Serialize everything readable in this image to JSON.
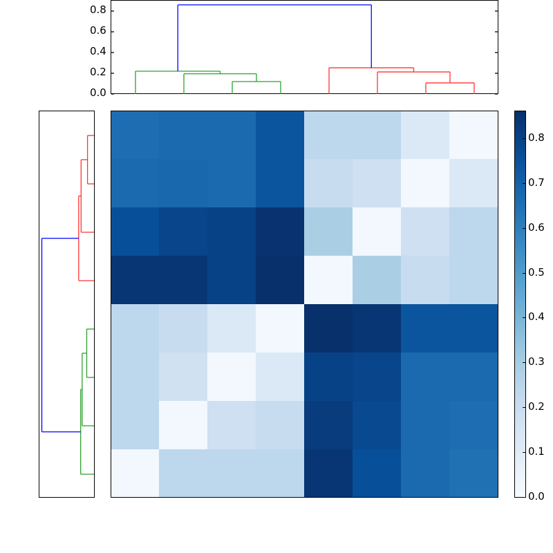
{
  "chart_data": [
    {
      "type": "dendrogram",
      "orientation": "top",
      "title": "",
      "ylabel": "",
      "ylim": [
        0,
        0.9
      ],
      "yticks": [
        "0.0",
        "0.2",
        "0.4",
        "0.6",
        "0.8"
      ],
      "leaf_order": [
        0,
        1,
        2,
        3,
        4,
        5,
        6,
        7
      ],
      "links": [
        {
          "left": 2,
          "right": 3,
          "height": 0.12,
          "color": "#2ca02c",
          "cluster": "green"
        },
        {
          "left": 1,
          "right": "2-3",
          "height": 0.195,
          "color": "#2ca02c",
          "cluster": "green"
        },
        {
          "left": 0,
          "right": "1-3",
          "height": 0.22,
          "color": "#2ca02c",
          "cluster": "green"
        },
        {
          "left": 6,
          "right": 7,
          "height": 0.107,
          "color": "#ff3333",
          "cluster": "red"
        },
        {
          "left": 5,
          "right": "6-7",
          "height": 0.213,
          "color": "#ff3333",
          "cluster": "red"
        },
        {
          "left": 4,
          "right": "5-7",
          "height": 0.253,
          "color": "#ff3333",
          "cluster": "red"
        },
        {
          "left": "0-3",
          "right": "4-7",
          "height": 0.86,
          "color": "#0000ff",
          "cluster": "root"
        }
      ]
    },
    {
      "type": "dendrogram",
      "orientation": "left",
      "title": "",
      "ticks_visible": false,
      "leaf_order_top_to_bottom": [
        "R0",
        "R1",
        "R2",
        "R3",
        "R4",
        "R5",
        "R6",
        "R7"
      ],
      "links": [
        {
          "upper": 0,
          "lower": 1,
          "height": 0.107,
          "color": "#ff3333",
          "cluster": "red"
        },
        {
          "upper": "0-1",
          "lower": 2,
          "height": 0.213,
          "color": "#ff3333",
          "cluster": "red"
        },
        {
          "upper": "0-2",
          "lower": 3,
          "height": 0.253,
          "color": "#ff3333",
          "cluster": "red"
        },
        {
          "upper": 4,
          "lower": 5,
          "height": 0.12,
          "color": "#2ca02c",
          "cluster": "green"
        },
        {
          "upper": "4-5",
          "lower": 6,
          "height": 0.195,
          "color": "#2ca02c",
          "cluster": "green"
        },
        {
          "upper": "4-6",
          "lower": 7,
          "height": 0.22,
          "color": "#2ca02c",
          "cluster": "green"
        },
        {
          "upper": "0-3",
          "lower": "4-7",
          "height": 0.86,
          "color": "#0000ff",
          "cluster": "root"
        }
      ]
    },
    {
      "type": "heatmap",
      "title": "",
      "colormap": "Blues",
      "vmin": 0.0,
      "vmax": 0.86,
      "rows": 8,
      "cols": 8,
      "xticks_visible": false,
      "yticks_visible": false,
      "values": [
        [
          0.66,
          0.67,
          0.67,
          0.74,
          0.24,
          0.24,
          0.12,
          0.02
        ],
        [
          0.67,
          0.68,
          0.67,
          0.74,
          0.21,
          0.18,
          0.02,
          0.12
        ],
        [
          0.76,
          0.79,
          0.8,
          0.85,
          0.29,
          0.02,
          0.18,
          0.24
        ],
        [
          0.84,
          0.84,
          0.8,
          0.86,
          0.02,
          0.29,
          0.21,
          0.24
        ],
        [
          0.24,
          0.21,
          0.12,
          0.02,
          0.86,
          0.84,
          0.74,
          0.74
        ],
        [
          0.24,
          0.17,
          0.02,
          0.12,
          0.8,
          0.79,
          0.67,
          0.67
        ],
        [
          0.24,
          0.02,
          0.18,
          0.21,
          0.82,
          0.78,
          0.67,
          0.66
        ],
        [
          0.02,
          0.24,
          0.24,
          0.24,
          0.84,
          0.76,
          0.67,
          0.65
        ]
      ]
    },
    {
      "type": "colorbar",
      "colormap": "Blues",
      "range": [
        0.0,
        0.86
      ],
      "ticks": [
        "0.0",
        "0.1",
        "0.2",
        "0.3",
        "0.4",
        "0.5",
        "0.6",
        "0.7",
        "0.8"
      ]
    }
  ],
  "colors": {
    "green_cluster": "#2ca02c",
    "red_cluster": "#ff3333",
    "root_link": "#0000ff",
    "axis": "#000000"
  }
}
